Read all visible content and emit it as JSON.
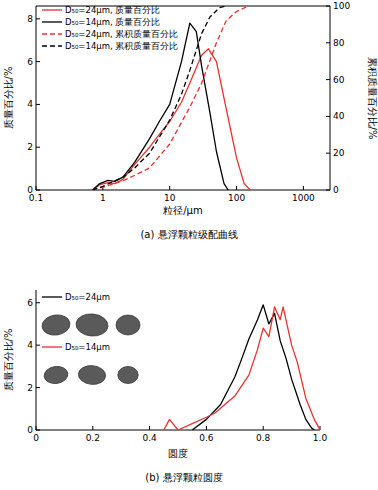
{
  "chart_data": [
    {
      "type": "line",
      "title": "(a) 悬浮颗粒级配曲线",
      "x_label": "粒径/μm",
      "y_label": "质量百分比/%",
      "y2_label": "累积质量百分比/%",
      "log": "x",
      "xlim": [
        0.1,
        2500
      ],
      "xticks": [
        0.1,
        1,
        10,
        100,
        1000
      ],
      "ylim": [
        0,
        8.6
      ],
      "yticks": [
        0,
        2,
        4,
        6,
        8
      ],
      "y2lim": [
        0,
        100
      ],
      "y2ticks": [
        0,
        20,
        40,
        60,
        80,
        100
      ],
      "legend": "upper left",
      "series": [
        {
          "name": "D₅₀=24μm, 质量百分比",
          "color": "#e8312f",
          "line_style": "solid",
          "x": [
            0.7,
            0.9,
            1.2,
            1.5,
            2,
            3,
            5,
            7,
            10,
            15,
            20,
            30,
            38,
            50,
            70,
            100,
            130,
            160
          ],
          "values": [
            0,
            0.25,
            0.35,
            0.3,
            0.5,
            1.2,
            2.0,
            2.6,
            3.2,
            4.1,
            5.0,
            6.3,
            6.6,
            6.0,
            3.8,
            1.5,
            0.3,
            0
          ]
        },
        {
          "name": "D₅₀=14μm, 质量百分比",
          "color": "#000000",
          "line_style": "solid",
          "x": [
            0.7,
            0.9,
            1.2,
            1.5,
            2,
            3,
            5,
            7,
            10,
            15,
            20,
            25,
            30,
            40,
            50,
            65,
            75
          ],
          "values": [
            0,
            0.3,
            0.45,
            0.4,
            0.6,
            1.3,
            2.4,
            3.2,
            4.0,
            6.0,
            7.8,
            7.4,
            5.8,
            3.6,
            1.8,
            0.3,
            0
          ]
        },
        {
          "name": "D₅₀=24μm, 累积质量百分比",
          "color": "#e8312f",
          "line_style": "dashed",
          "axis": "y2",
          "x": [
            0.7,
            1,
            2,
            3,
            5,
            10,
            20,
            30,
            50,
            70,
            100,
            150
          ],
          "values": [
            0,
            1.5,
            5,
            8,
            12,
            25,
            45,
            58,
            80,
            92,
            97,
            100
          ]
        },
        {
          "name": "D₅₀=14μm, 累积质量百分比",
          "color": "#000000",
          "line_style": "dashed",
          "axis": "y2",
          "x": [
            0.7,
            1,
            2,
            3,
            5,
            10,
            15,
            20,
            30,
            40,
            55,
            70
          ],
          "values": [
            0,
            2,
            7,
            12,
            20,
            38,
            52,
            65,
            85,
            94,
            99,
            100
          ]
        }
      ]
    },
    {
      "type": "line",
      "title": "(b) 悬浮颗粒圆度",
      "x_label": "圆度",
      "y_label": "质量百分比/%",
      "xlim": [
        0,
        1
      ],
      "xticks": [
        0,
        0.2,
        0.4,
        0.6,
        0.8,
        {
          "value": 1,
          "label": "1.0"
        }
      ],
      "ylim": [
        0,
        6.6
      ],
      "yticks": [
        0,
        2,
        4,
        6
      ],
      "legend": "upper left",
      "series": [
        {
          "name": "D₅₀=24μm",
          "color": "#000000",
          "line_style": "solid",
          "x": [
            0.55,
            0.6,
            0.65,
            0.7,
            0.72,
            0.75,
            0.78,
            0.8,
            0.82,
            0.84,
            0.86,
            0.88,
            0.9,
            0.93,
            0.95,
            0.97,
            0.98
          ],
          "values": [
            0,
            0.5,
            1.2,
            2.5,
            3.2,
            4.3,
            5.2,
            5.9,
            5.0,
            5.5,
            4.2,
            3.4,
            2.4,
            1.2,
            0.5,
            0.1,
            0
          ]
        },
        {
          "name": "D₅₀=14μm",
          "color": "#e8312f",
          "line_style": "solid",
          "x": [
            0.45,
            0.47,
            0.5,
            0.55,
            0.6,
            0.63,
            0.7,
            0.75,
            0.78,
            0.8,
            0.82,
            0.84,
            0.86,
            0.87,
            0.9,
            0.92,
            0.95,
            0.98,
            1.0
          ],
          "values": [
            0,
            0.5,
            0,
            0.3,
            0.6,
            0.8,
            1.6,
            2.6,
            3.8,
            4.8,
            4.4,
            5.8,
            5.2,
            5.8,
            4.0,
            3.2,
            1.5,
            0.5,
            0
          ]
        }
      ]
    }
  ]
}
